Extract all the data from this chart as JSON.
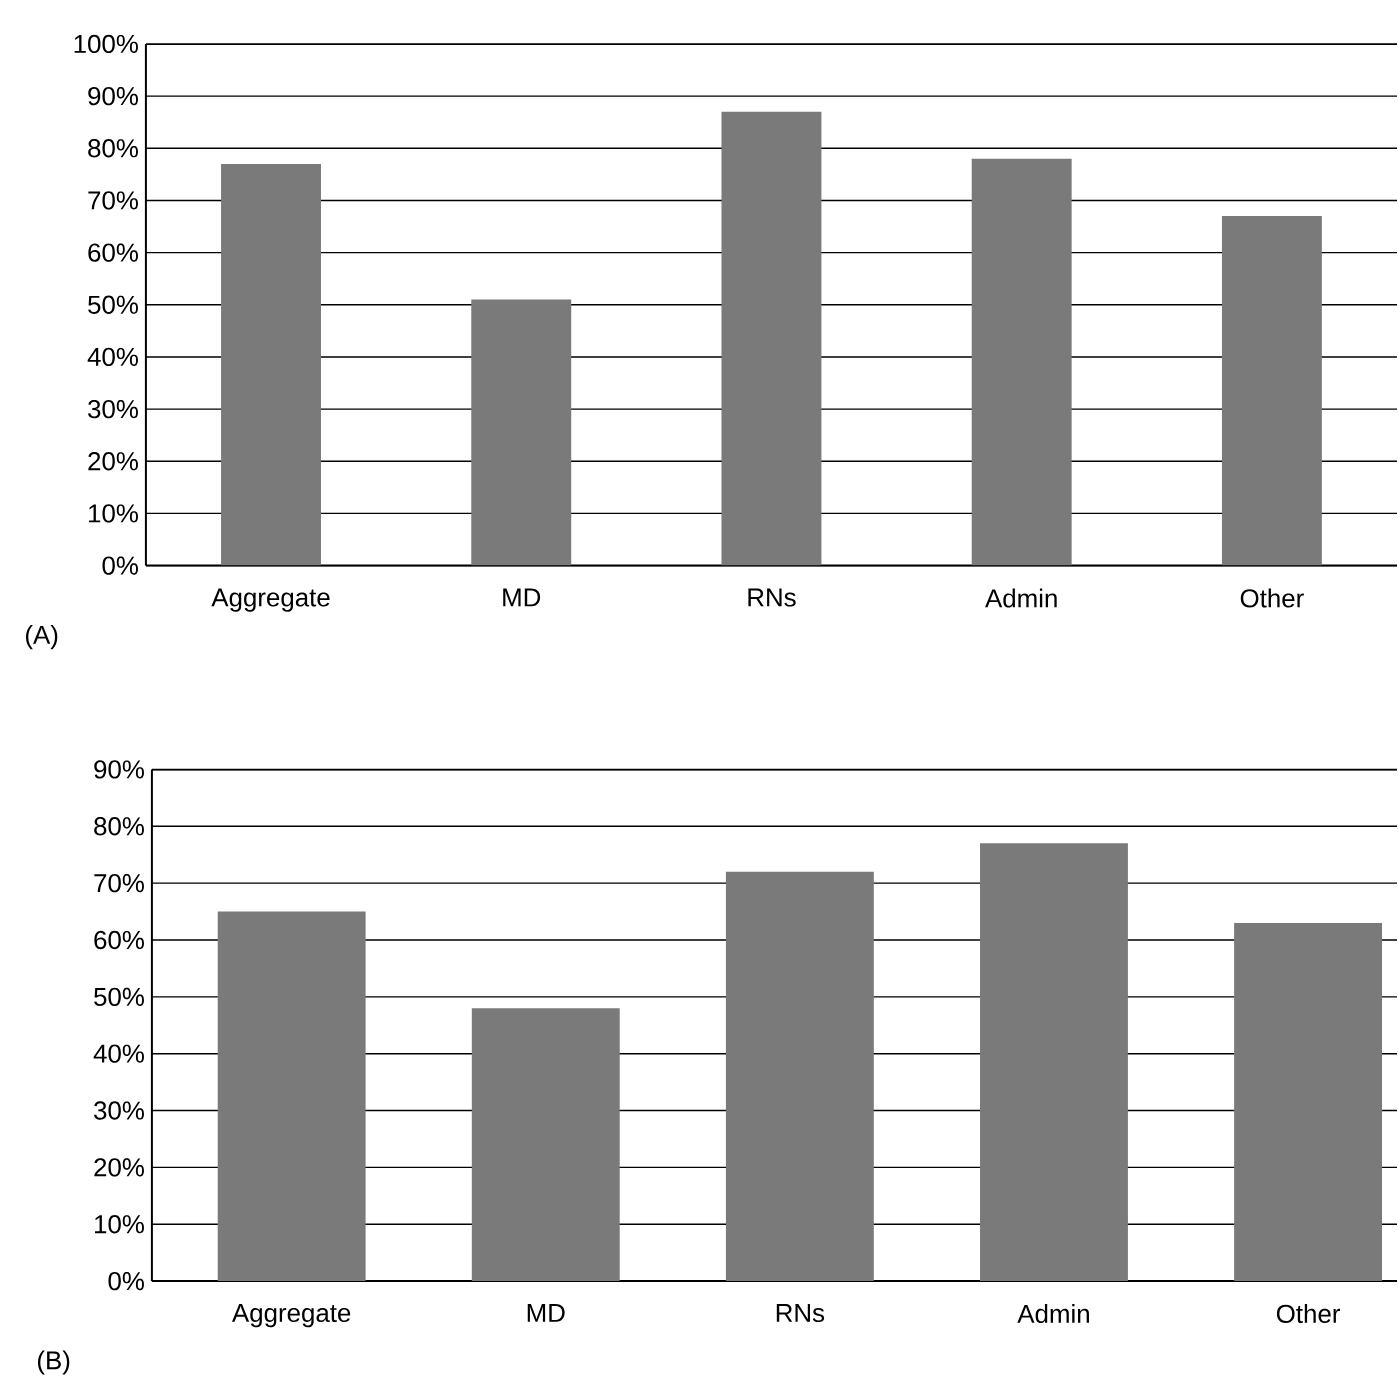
{
  "chart_data": [
    {
      "type": "bar",
      "categories": [
        "Aggregate",
        "MD",
        "RNs",
        "Admin",
        "Other"
      ],
      "values": [
        77,
        51,
        87,
        78,
        67
      ],
      "color": "#7a7a7a",
      "ylim": [
        0,
        100
      ],
      "yticks": [
        {
          "value": 0,
          "label": "0%"
        },
        {
          "value": 10,
          "label": "10%"
        },
        {
          "value": 20,
          "label": "20%"
        },
        {
          "value": 30,
          "label": "30%"
        },
        {
          "value": 40,
          "label": "40%"
        },
        {
          "value": 50,
          "label": "50%"
        },
        {
          "value": 60,
          "label": "60%"
        },
        {
          "value": 70,
          "label": "70%"
        },
        {
          "value": 80,
          "label": "80%"
        },
        {
          "value": 90,
          "label": "90%"
        },
        {
          "value": 100,
          "label": "100%"
        }
      ],
      "grid": "y",
      "annotations": [
        "(A)"
      ]
    },
    {
      "type": "bar",
      "categories": [
        "Aggregate",
        "MD",
        "RNs",
        "Admin",
        "Other"
      ],
      "values": [
        65,
        48,
        72,
        77,
        63
      ],
      "color": "#7a7a7a",
      "ylim": [
        0,
        90
      ],
      "yticks": [
        {
          "value": 0,
          "label": "0%"
        },
        {
          "value": 10,
          "label": "10%"
        },
        {
          "value": 20,
          "label": "20%"
        },
        {
          "value": 30,
          "label": "30%"
        },
        {
          "value": 40,
          "label": "40%"
        },
        {
          "value": 50,
          "label": "50%"
        },
        {
          "value": 60,
          "label": "60%"
        },
        {
          "value": 70,
          "label": "70%"
        },
        {
          "value": 80,
          "label": "80%"
        },
        {
          "value": 90,
          "label": "90%"
        }
      ],
      "grid": "y",
      "annotations": [
        "(B)"
      ]
    }
  ]
}
